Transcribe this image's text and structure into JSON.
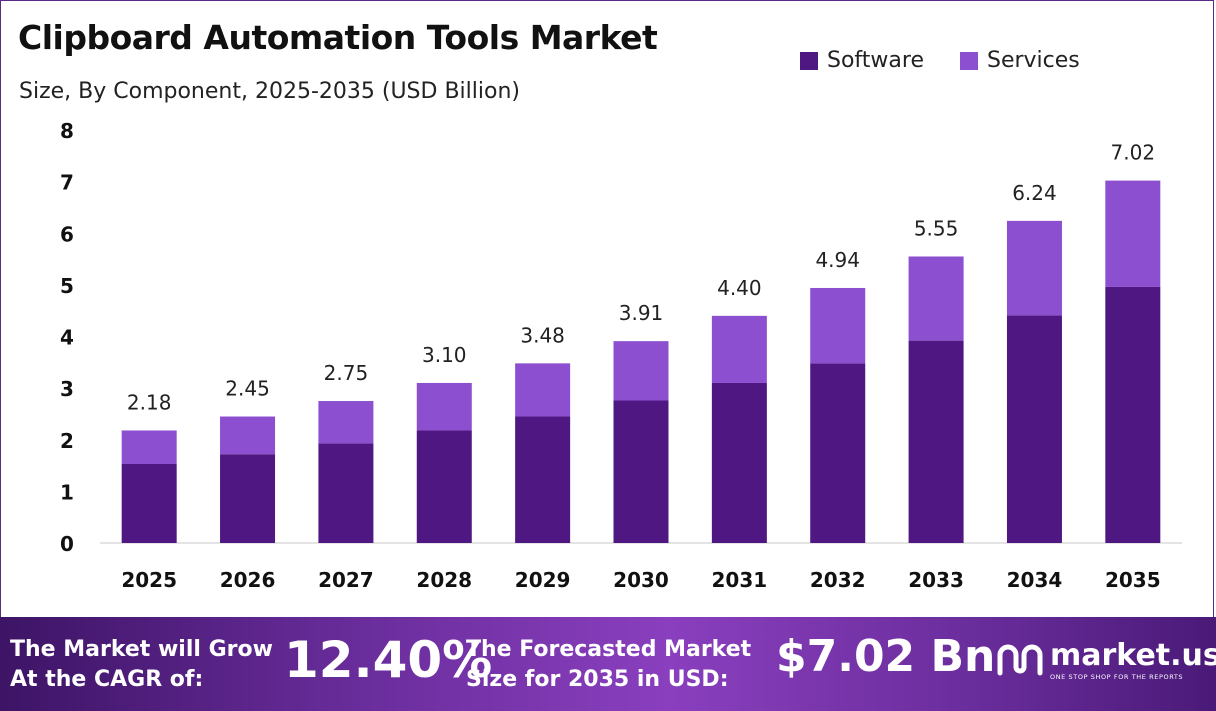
{
  "header": {
    "title": "Clipboard Automation Tools Market",
    "subtitle": "Size, By Component, 2025-2035 (USD Billion)"
  },
  "legend": {
    "items": [
      {
        "label": "Software",
        "color": "#4e1782"
      },
      {
        "label": "Services",
        "color": "#8c4fd0"
      }
    ]
  },
  "chart_data": {
    "type": "bar",
    "stacked": true,
    "categories": [
      "2025",
      "2026",
      "2027",
      "2028",
      "2029",
      "2030",
      "2031",
      "2032",
      "2033",
      "2034",
      "2035"
    ],
    "series": [
      {
        "name": "Software",
        "color": "#4e1782",
        "values": [
          1.53,
          1.72,
          1.93,
          2.18,
          2.45,
          2.76,
          3.1,
          3.48,
          3.92,
          4.41,
          4.96
        ]
      },
      {
        "name": "Services",
        "color": "#8c4fd0",
        "values": [
          0.65,
          0.73,
          0.82,
          0.92,
          1.03,
          1.15,
          1.3,
          1.46,
          1.63,
          1.83,
          2.06
        ]
      }
    ],
    "totals": [
      "2.18",
      "2.45",
      "2.75",
      "3.10",
      "3.48",
      "3.91",
      "4.40",
      "4.94",
      "5.55",
      "6.24",
      "7.02"
    ],
    "ylim": [
      0,
      8
    ],
    "yticks": [
      "0",
      "1",
      "2",
      "3",
      "4",
      "5",
      "6",
      "7",
      "8"
    ],
    "grid": false,
    "legend_position": "top-right"
  },
  "footer": {
    "grow_label": "The Market will Grow At the CAGR of:",
    "cagr_value": "12.40%",
    "forecast_label": "The Forecasted Market Size for 2035 in USD:",
    "forecast_value": "$7.02 Bn",
    "brand_name": "market.us",
    "brand_tagline": "ONE STOP SHOP FOR THE REPORTS",
    "brand_icon": "market-us-logo-icon"
  }
}
